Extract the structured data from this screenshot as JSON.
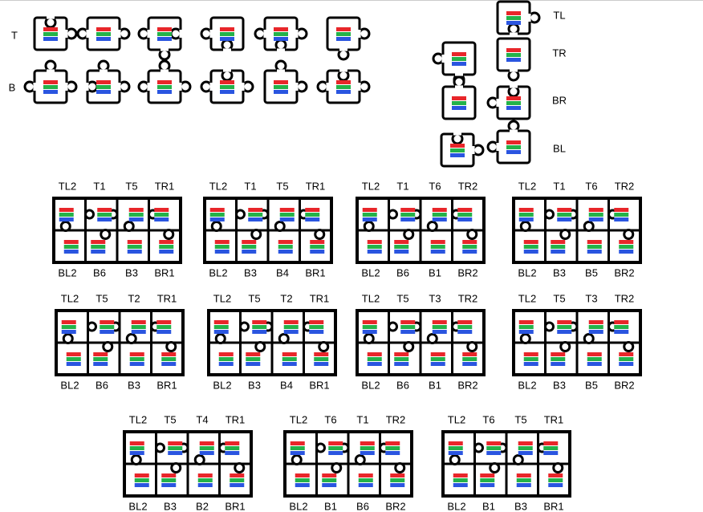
{
  "row_labels": [
    "T",
    "B"
  ],
  "corner_labels": [
    "TL",
    "TR",
    "BR",
    "BL"
  ],
  "assemblies": [
    {
      "top": [
        "TL2",
        "T1",
        "T5",
        "TR1"
      ],
      "bottom": [
        "BL2",
        "B6",
        "B3",
        "BR1"
      ]
    },
    {
      "top": [
        "TL2",
        "T1",
        "T5",
        "TR1"
      ],
      "bottom": [
        "BL2",
        "B3",
        "B4",
        "BR1"
      ]
    },
    {
      "top": [
        "TL2",
        "T1",
        "T6",
        "TR2"
      ],
      "bottom": [
        "BL2",
        "B6",
        "B1",
        "BR2"
      ]
    },
    {
      "top": [
        "TL2",
        "T1",
        "T6",
        "TR2"
      ],
      "bottom": [
        "BL2",
        "B3",
        "B5",
        "BR2"
      ]
    },
    {
      "top": [
        "TL2",
        "T5",
        "T2",
        "TR1"
      ],
      "bottom": [
        "BL2",
        "B6",
        "B3",
        "BR1"
      ]
    },
    {
      "top": [
        "TL2",
        "T5",
        "T2",
        "TR1"
      ],
      "bottom": [
        "BL2",
        "B3",
        "B4",
        "BR1"
      ]
    },
    {
      "top": [
        "TL2",
        "T5",
        "T3",
        "TR2"
      ],
      "bottom": [
        "BL2",
        "B6",
        "B1",
        "BR2"
      ]
    },
    {
      "top": [
        "TL2",
        "T5",
        "T3",
        "TR2"
      ],
      "bottom": [
        "BL2",
        "B3",
        "B5",
        "BR2"
      ]
    },
    {
      "top": [
        "TL2",
        "T5",
        "T4",
        "TR1"
      ],
      "bottom": [
        "BL2",
        "B3",
        "B2",
        "BR1"
      ]
    },
    {
      "top": [
        "TL2",
        "T6",
        "T1",
        "TR2"
      ],
      "bottom": [
        "BL2",
        "B1",
        "B6",
        "BR2"
      ]
    },
    {
      "top": [
        "TL2",
        "T6",
        "T5",
        "TR1"
      ],
      "bottom": [
        "BL2",
        "B1",
        "B3",
        "BR1"
      ]
    }
  ]
}
